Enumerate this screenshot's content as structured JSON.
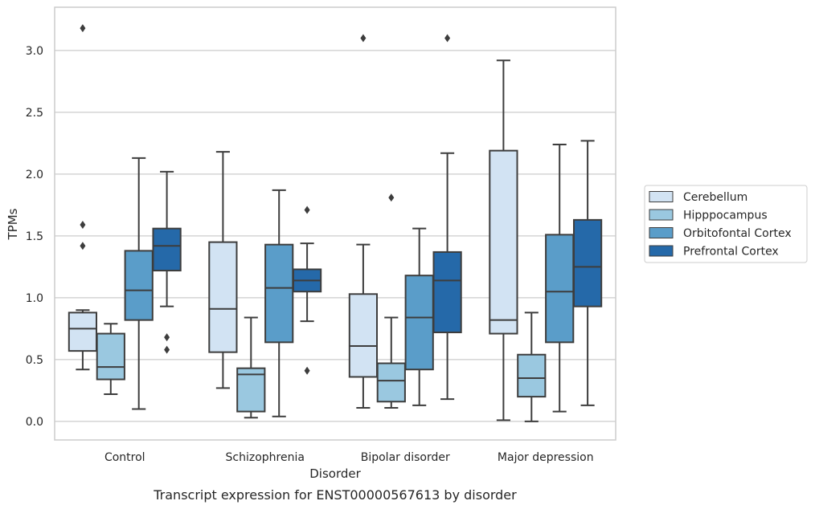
{
  "caption": "Transcript expression for ENST00000567613 by disorder",
  "chart_data": {
    "type": "boxplot",
    "title": "",
    "xlabel": "Disorder",
    "ylabel": "TPMs",
    "ylim": [
      -0.15,
      3.35
    ],
    "yticks": [
      "0.0",
      "0.5",
      "1.0",
      "1.5",
      "2.0",
      "2.5",
      "3.0"
    ],
    "grid": "horizontal",
    "legend_position": "right",
    "categories": [
      "Control",
      "Schizophrenia",
      "Bipolar disorder",
      "Major depression"
    ],
    "series": [
      {
        "name": "Cerebellum",
        "color": "#d2e3f3",
        "boxes": [
          {
            "whislo": 0.42,
            "q1": 0.57,
            "med": 0.75,
            "q3": 0.88,
            "whishi": 0.9,
            "fliers": [
              3.18,
              1.59,
              1.42
            ]
          },
          {
            "whislo": 0.27,
            "q1": 0.56,
            "med": 0.91,
            "q3": 1.45,
            "whishi": 2.18,
            "fliers": []
          },
          {
            "whislo": 0.11,
            "q1": 0.36,
            "med": 0.61,
            "q3": 1.03,
            "whishi": 1.43,
            "fliers": [
              3.1
            ]
          },
          {
            "whislo": 0.01,
            "q1": 0.71,
            "med": 0.82,
            "q3": 2.19,
            "whishi": 2.92,
            "fliers": []
          }
        ]
      },
      {
        "name": "Hipppocampus",
        "color": "#9ac8e0",
        "boxes": [
          {
            "whislo": 0.22,
            "q1": 0.34,
            "med": 0.44,
            "q3": 0.71,
            "whishi": 0.79,
            "fliers": []
          },
          {
            "whislo": 0.03,
            "q1": 0.08,
            "med": 0.38,
            "q3": 0.43,
            "whishi": 0.84,
            "fliers": []
          },
          {
            "whislo": 0.11,
            "q1": 0.16,
            "med": 0.33,
            "q3": 0.47,
            "whishi": 0.84,
            "fliers": [
              1.81
            ]
          },
          {
            "whislo": 0.0,
            "q1": 0.2,
            "med": 0.35,
            "q3": 0.54,
            "whishi": 0.88,
            "fliers": []
          }
        ]
      },
      {
        "name": "Orbitofontal Cortex",
        "color": "#5a9dc9",
        "boxes": [
          {
            "whislo": 0.1,
            "q1": 0.82,
            "med": 1.06,
            "q3": 1.38,
            "whishi": 2.13,
            "fliers": []
          },
          {
            "whislo": 0.04,
            "q1": 0.64,
            "med": 1.08,
            "q3": 1.43,
            "whishi": 1.87,
            "fliers": []
          },
          {
            "whislo": 0.13,
            "q1": 0.42,
            "med": 0.84,
            "q3": 1.18,
            "whishi": 1.56,
            "fliers": []
          },
          {
            "whislo": 0.08,
            "q1": 0.64,
            "med": 1.05,
            "q3": 1.51,
            "whishi": 2.24,
            "fliers": []
          }
        ]
      },
      {
        "name": "Prefrontal Cortex",
        "color": "#2569a9",
        "boxes": [
          {
            "whislo": 0.93,
            "q1": 1.22,
            "med": 1.42,
            "q3": 1.56,
            "whishi": 2.02,
            "fliers": [
              0.68,
              0.58
            ]
          },
          {
            "whislo": 0.81,
            "q1": 1.05,
            "med": 1.14,
            "q3": 1.23,
            "whishi": 1.44,
            "fliers": [
              1.71,
              0.41
            ]
          },
          {
            "whislo": 0.18,
            "q1": 0.72,
            "med": 1.14,
            "q3": 1.37,
            "whishi": 2.17,
            "fliers": [
              3.1
            ]
          },
          {
            "whislo": 0.13,
            "q1": 0.93,
            "med": 1.25,
            "q3": 1.63,
            "whishi": 2.27,
            "fliers": []
          }
        ]
      }
    ]
  }
}
